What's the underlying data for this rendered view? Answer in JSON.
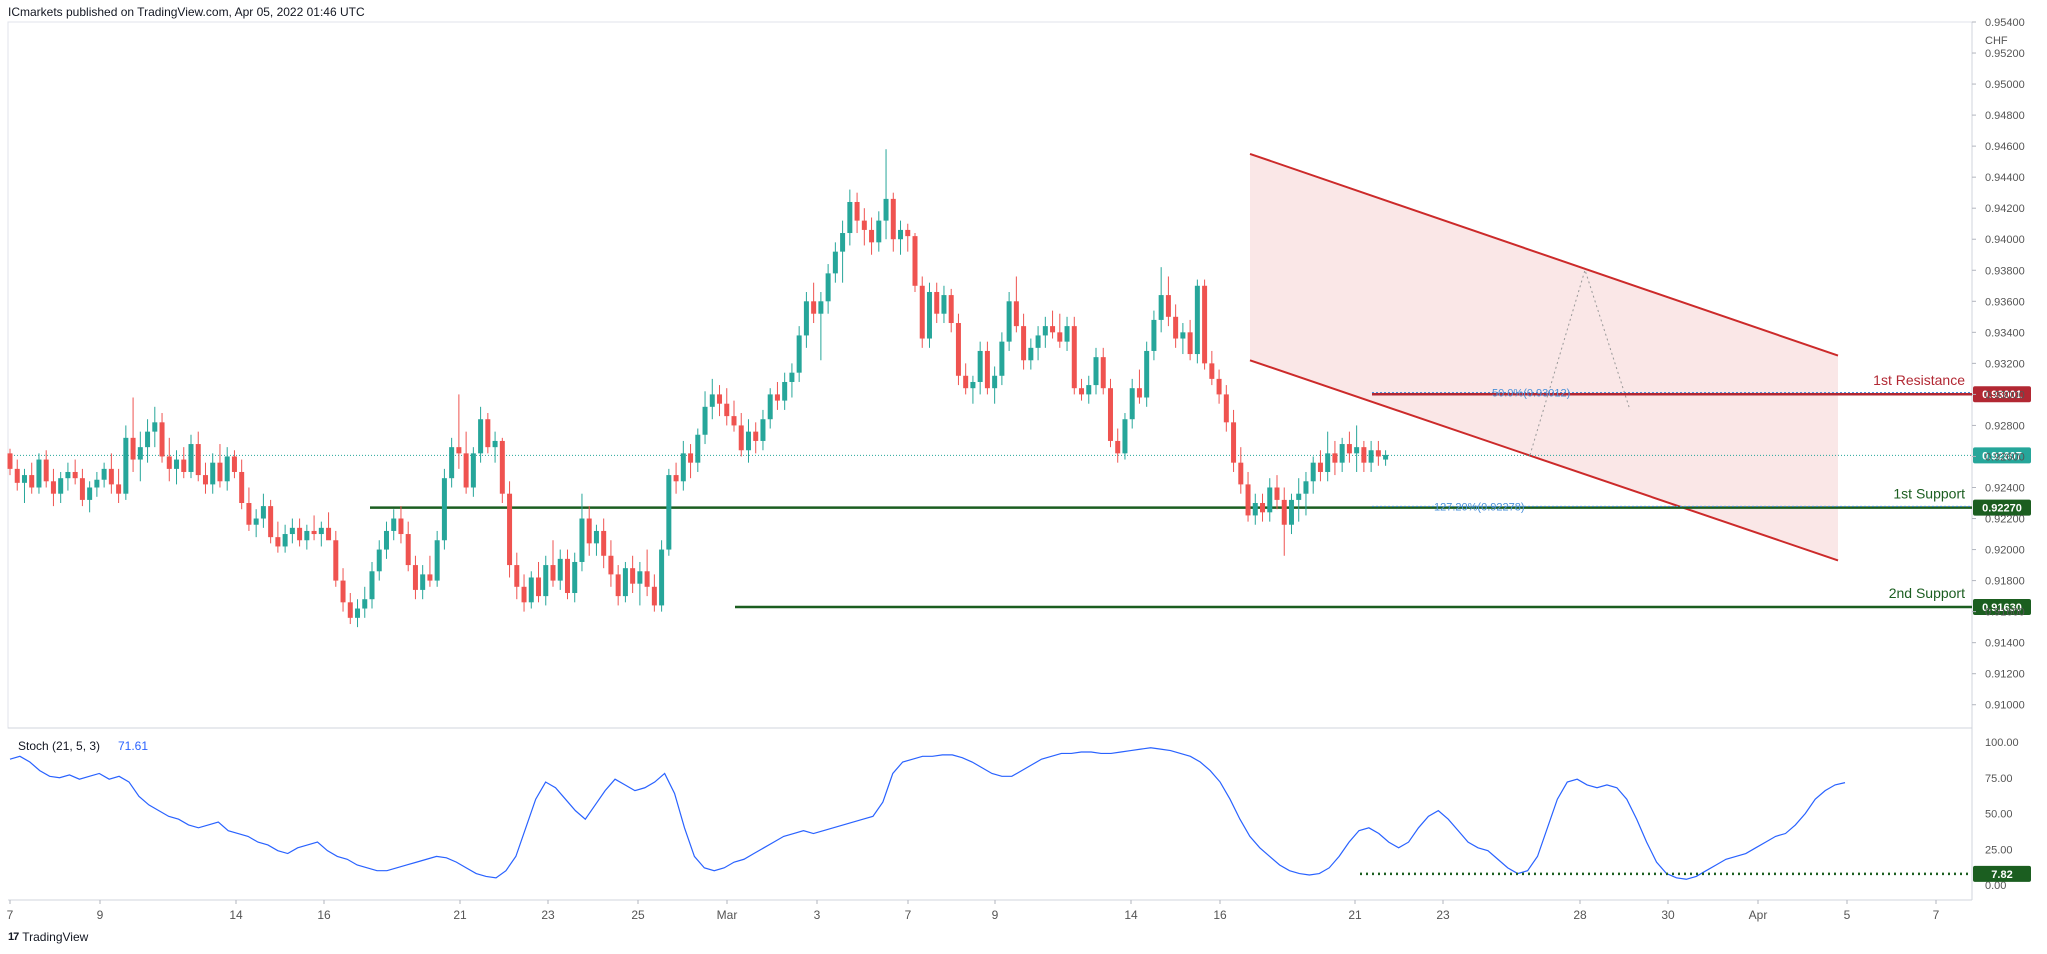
{
  "header": {
    "publish_line": "ICmarkets published on TradingView.com, Apr 05, 2022 01:46 UTC"
  },
  "footer": {
    "brand": "TradingView"
  },
  "colors": {
    "up": "#26a69a",
    "down": "#ef5350",
    "resistance": "#b22833",
    "support": "#1b5e20",
    "channel": "#cc2a2a",
    "stoch": "#2962ff"
  },
  "chart_data": {
    "type": "candlestick",
    "currency_label": "CHF",
    "y_ticks": [
      "0.95400",
      "0.95200",
      "0.95000",
      "0.94800",
      "0.94600",
      "0.94400",
      "0.94200",
      "0.94000",
      "0.93800",
      "0.93600",
      "0.93400",
      "0.93200",
      "0.93000",
      "0.92800",
      "0.92600",
      "0.92400",
      "0.92200",
      "0.92000",
      "0.91800",
      "0.91600",
      "0.91400",
      "0.91200",
      "0.91000"
    ],
    "ylim": [
      0.9085,
      0.954
    ],
    "x_ticks": [
      "7",
      "9",
      "14",
      "16",
      "21",
      "23",
      "25",
      "Mar",
      "3",
      "7",
      "9",
      "14",
      "16",
      "21",
      "23",
      "28",
      "30",
      "Apr",
      "5",
      "7"
    ],
    "current_price": "0.92607",
    "levels": [
      {
        "name": "1st Resistance",
        "price": 0.93001,
        "label": "0.93001",
        "start": "Mar 21"
      },
      {
        "name": "1st Support",
        "price": 0.9227,
        "label": "0.92270",
        "start": "Feb 17"
      },
      {
        "name": "2nd Support",
        "price": 0.9163,
        "label": "0.91630",
        "start": "Mar 1"
      }
    ],
    "fib_labels": [
      {
        "text": "50.0%(0.93012)",
        "price": 0.93012
      },
      {
        "text": "127.20%(0.92278)",
        "price": 0.92278
      }
    ],
    "channel": {
      "upper": [
        [
          0,
          0.9455
        ],
        [
          1,
          0.9325
        ]
      ],
      "lower": [
        [
          0,
          0.9322
        ],
        [
          1,
          0.9193
        ]
      ],
      "start": "Mar 16",
      "end": "Apr 5"
    },
    "ohlc": [
      [
        0.9262,
        0.9265,
        0.9248,
        0.9252
      ],
      [
        0.9252,
        0.9258,
        0.9238,
        0.9243
      ],
      [
        0.9243,
        0.9252,
        0.923,
        0.9248
      ],
      [
        0.9248,
        0.9256,
        0.9236,
        0.924
      ],
      [
        0.924,
        0.9262,
        0.9236,
        0.9258
      ],
      [
        0.9258,
        0.9264,
        0.924,
        0.9244
      ],
      [
        0.9244,
        0.9252,
        0.9228,
        0.9236
      ],
      [
        0.9236,
        0.925,
        0.923,
        0.9246
      ],
      [
        0.9246,
        0.9256,
        0.9238,
        0.925
      ],
      [
        0.925,
        0.9258,
        0.9242,
        0.9246
      ],
      [
        0.9246,
        0.9252,
        0.9228,
        0.9232
      ],
      [
        0.9232,
        0.9244,
        0.9224,
        0.924
      ],
      [
        0.924,
        0.925,
        0.9234,
        0.9245
      ],
      [
        0.9245,
        0.9256,
        0.924,
        0.9252
      ],
      [
        0.9252,
        0.9262,
        0.9236,
        0.9242
      ],
      [
        0.9242,
        0.9252,
        0.923,
        0.9236
      ],
      [
        0.9236,
        0.928,
        0.9232,
        0.9272
      ],
      [
        0.9272,
        0.9298,
        0.925,
        0.9258
      ],
      [
        0.9258,
        0.9276,
        0.9244,
        0.9266
      ],
      [
        0.9266,
        0.9284,
        0.9256,
        0.9276
      ],
      [
        0.9276,
        0.9292,
        0.9266,
        0.9282
      ],
      [
        0.9282,
        0.9288,
        0.9256,
        0.926
      ],
      [
        0.926,
        0.9272,
        0.9244,
        0.9252
      ],
      [
        0.9252,
        0.9264,
        0.9242,
        0.9258
      ],
      [
        0.9258,
        0.9266,
        0.9246,
        0.925
      ],
      [
        0.925,
        0.9274,
        0.9246,
        0.9268
      ],
      [
        0.9268,
        0.9276,
        0.9244,
        0.9248
      ],
      [
        0.9248,
        0.9256,
        0.9236,
        0.9242
      ],
      [
        0.9242,
        0.9262,
        0.9236,
        0.9256
      ],
      [
        0.9256,
        0.9268,
        0.924,
        0.9244
      ],
      [
        0.9244,
        0.9266,
        0.9238,
        0.926
      ],
      [
        0.926,
        0.9264,
        0.9246,
        0.925
      ],
      [
        0.925,
        0.9258,
        0.9226,
        0.923
      ],
      [
        0.923,
        0.924,
        0.9212,
        0.9216
      ],
      [
        0.9216,
        0.9226,
        0.9208,
        0.922
      ],
      [
        0.922,
        0.9236,
        0.9214,
        0.9228
      ],
      [
        0.9228,
        0.9232,
        0.9204,
        0.9208
      ],
      [
        0.9208,
        0.9218,
        0.9198,
        0.9202
      ],
      [
        0.9202,
        0.9216,
        0.9198,
        0.921
      ],
      [
        0.921,
        0.922,
        0.9204,
        0.9214
      ],
      [
        0.9214,
        0.922,
        0.9202,
        0.9206
      ],
      [
        0.9206,
        0.9216,
        0.92,
        0.9212
      ],
      [
        0.9212,
        0.9222,
        0.9206,
        0.921
      ],
      [
        0.921,
        0.9218,
        0.9202,
        0.9214
      ],
      [
        0.9214,
        0.9224,
        0.9208,
        0.9206
      ],
      [
        0.9206,
        0.9212,
        0.9176,
        0.918
      ],
      [
        0.918,
        0.9188,
        0.916,
        0.9166
      ],
      [
        0.9166,
        0.9172,
        0.9152,
        0.9156
      ],
      [
        0.9156,
        0.9168,
        0.915,
        0.9162
      ],
      [
        0.9162,
        0.9176,
        0.9156,
        0.9168
      ],
      [
        0.9168,
        0.9192,
        0.9162,
        0.9186
      ],
      [
        0.9186,
        0.9206,
        0.918,
        0.92
      ],
      [
        0.92,
        0.9218,
        0.9194,
        0.9212
      ],
      [
        0.9212,
        0.9226,
        0.9206,
        0.922
      ],
      [
        0.922,
        0.9228,
        0.9204,
        0.921
      ],
      [
        0.921,
        0.9218,
        0.9186,
        0.919
      ],
      [
        0.919,
        0.9196,
        0.9168,
        0.9174
      ],
      [
        0.9174,
        0.919,
        0.9168,
        0.9184
      ],
      [
        0.9184,
        0.9196,
        0.9176,
        0.918
      ],
      [
        0.918,
        0.9212,
        0.9176,
        0.9206
      ],
      [
        0.9206,
        0.9252,
        0.92,
        0.9246
      ],
      [
        0.9246,
        0.9272,
        0.924,
        0.9266
      ],
      [
        0.9266,
        0.93,
        0.9252,
        0.9262
      ],
      [
        0.9262,
        0.9276,
        0.9236,
        0.924
      ],
      [
        0.924,
        0.9266,
        0.9234,
        0.9262
      ],
      [
        0.9262,
        0.9292,
        0.9256,
        0.9284
      ],
      [
        0.9284,
        0.9288,
        0.9262,
        0.9266
      ],
      [
        0.9266,
        0.9276,
        0.9256,
        0.927
      ],
      [
        0.927,
        0.9272,
        0.923,
        0.9236
      ],
      [
        0.9236,
        0.9244,
        0.9182,
        0.919
      ],
      [
        0.919,
        0.9198,
        0.9168,
        0.9176
      ],
      [
        0.9176,
        0.9184,
        0.916,
        0.9166
      ],
      [
        0.9166,
        0.9186,
        0.9162,
        0.9182
      ],
      [
        0.9182,
        0.9192,
        0.9166,
        0.917
      ],
      [
        0.917,
        0.9196,
        0.9164,
        0.919
      ],
      [
        0.919,
        0.9206,
        0.9176,
        0.918
      ],
      [
        0.918,
        0.92,
        0.9174,
        0.9194
      ],
      [
        0.9194,
        0.92,
        0.9168,
        0.9172
      ],
      [
        0.9172,
        0.9198,
        0.9166,
        0.9192
      ],
      [
        0.9192,
        0.9236,
        0.9186,
        0.922
      ],
      [
        0.922,
        0.9228,
        0.9196,
        0.9204
      ],
      [
        0.9204,
        0.9216,
        0.9196,
        0.9212
      ],
      [
        0.9212,
        0.922,
        0.9188,
        0.9196
      ],
      [
        0.9196,
        0.9206,
        0.9176,
        0.9184
      ],
      [
        0.9184,
        0.919,
        0.9164,
        0.917
      ],
      [
        0.917,
        0.9192,
        0.9166,
        0.9188
      ],
      [
        0.9188,
        0.9196,
        0.9172,
        0.9178
      ],
      [
        0.9178,
        0.9192,
        0.9164,
        0.9186
      ],
      [
        0.9186,
        0.92,
        0.917,
        0.9176
      ],
      [
        0.9176,
        0.9184,
        0.916,
        0.9164
      ],
      [
        0.9164,
        0.9206,
        0.916,
        0.92
      ],
      [
        0.92,
        0.9252,
        0.9196,
        0.9248
      ],
      [
        0.9248,
        0.9256,
        0.9236,
        0.9244
      ],
      [
        0.9244,
        0.927,
        0.9238,
        0.9262
      ],
      [
        0.9262,
        0.9268,
        0.9246,
        0.9256
      ],
      [
        0.9256,
        0.9278,
        0.925,
        0.9274
      ],
      [
        0.9274,
        0.9302,
        0.9268,
        0.9292
      ],
      [
        0.9292,
        0.931,
        0.9284,
        0.93
      ],
      [
        0.93,
        0.9306,
        0.9286,
        0.9294
      ],
      [
        0.9294,
        0.9304,
        0.928,
        0.9286
      ],
      [
        0.9286,
        0.9296,
        0.9276,
        0.928
      ],
      [
        0.928,
        0.9288,
        0.926,
        0.9264
      ],
      [
        0.9264,
        0.9284,
        0.9256,
        0.9276
      ],
      [
        0.9276,
        0.9282,
        0.9262,
        0.927
      ],
      [
        0.927,
        0.929,
        0.9264,
        0.9284
      ],
      [
        0.9284,
        0.9304,
        0.9278,
        0.93
      ],
      [
        0.93,
        0.9308,
        0.929,
        0.9296
      ],
      [
        0.9296,
        0.9314,
        0.929,
        0.9308
      ],
      [
        0.9308,
        0.932,
        0.9298,
        0.9314
      ],
      [
        0.9314,
        0.9344,
        0.9308,
        0.9338
      ],
      [
        0.9338,
        0.9366,
        0.933,
        0.936
      ],
      [
        0.936,
        0.9372,
        0.9346,
        0.9352
      ],
      [
        0.9352,
        0.9366,
        0.9322,
        0.936
      ],
      [
        0.936,
        0.9384,
        0.9352,
        0.9378
      ],
      [
        0.9378,
        0.9398,
        0.9372,
        0.9392
      ],
      [
        0.9392,
        0.9412,
        0.9372,
        0.9404
      ],
      [
        0.9404,
        0.9432,
        0.9396,
        0.9424
      ],
      [
        0.9424,
        0.943,
        0.9404,
        0.9412
      ],
      [
        0.9412,
        0.942,
        0.9396,
        0.9406
      ],
      [
        0.9406,
        0.9414,
        0.939,
        0.9398
      ],
      [
        0.9398,
        0.9418,
        0.9392,
        0.9412
      ],
      [
        0.9412,
        0.9458,
        0.94,
        0.9426
      ],
      [
        0.9426,
        0.943,
        0.9392,
        0.94
      ],
      [
        0.94,
        0.9412,
        0.939,
        0.9406
      ],
      [
        0.9406,
        0.941,
        0.9392,
        0.9402
      ],
      [
        0.9402,
        0.9404,
        0.9366,
        0.937
      ],
      [
        0.937,
        0.9376,
        0.933,
        0.9336
      ],
      [
        0.9336,
        0.9372,
        0.933,
        0.9366
      ],
      [
        0.9366,
        0.9372,
        0.9346,
        0.9352
      ],
      [
        0.9352,
        0.937,
        0.9346,
        0.9364
      ],
      [
        0.9364,
        0.9368,
        0.934,
        0.9346
      ],
      [
        0.9346,
        0.9352,
        0.9306,
        0.9312
      ],
      [
        0.9312,
        0.932,
        0.93,
        0.9304
      ],
      [
        0.9304,
        0.9312,
        0.9294,
        0.9308
      ],
      [
        0.9308,
        0.9334,
        0.93,
        0.9328
      ],
      [
        0.9328,
        0.9334,
        0.93,
        0.9304
      ],
      [
        0.9304,
        0.9318,
        0.9294,
        0.9312
      ],
      [
        0.9312,
        0.934,
        0.9306,
        0.9334
      ],
      [
        0.9334,
        0.9366,
        0.9328,
        0.936
      ],
      [
        0.936,
        0.9376,
        0.934,
        0.9344
      ],
      [
        0.9344,
        0.9352,
        0.9316,
        0.9322
      ],
      [
        0.9322,
        0.9336,
        0.9316,
        0.933
      ],
      [
        0.933,
        0.9344,
        0.9322,
        0.9338
      ],
      [
        0.9338,
        0.935,
        0.933,
        0.9344
      ],
      [
        0.9344,
        0.9354,
        0.9336,
        0.934
      ],
      [
        0.934,
        0.9352,
        0.933,
        0.9334
      ],
      [
        0.9334,
        0.935,
        0.9328,
        0.9344
      ],
      [
        0.9344,
        0.935,
        0.93,
        0.9304
      ],
      [
        0.9304,
        0.931,
        0.9296,
        0.93
      ],
      [
        0.93,
        0.9312,
        0.9294,
        0.9306
      ],
      [
        0.9306,
        0.933,
        0.93,
        0.9324
      ],
      [
        0.9324,
        0.933,
        0.93,
        0.9304
      ],
      [
        0.9304,
        0.931,
        0.9266,
        0.927
      ],
      [
        0.927,
        0.9278,
        0.9256,
        0.9262
      ],
      [
        0.9262,
        0.9288,
        0.9258,
        0.9284
      ],
      [
        0.9284,
        0.931,
        0.9278,
        0.9304
      ],
      [
        0.9304,
        0.9316,
        0.9294,
        0.9298
      ],
      [
        0.9298,
        0.9334,
        0.9292,
        0.9328
      ],
      [
        0.9328,
        0.9354,
        0.9322,
        0.9348
      ],
      [
        0.9348,
        0.9382,
        0.934,
        0.9364
      ],
      [
        0.9364,
        0.9376,
        0.9344,
        0.935
      ],
      [
        0.935,
        0.9358,
        0.933,
        0.9336
      ],
      [
        0.9336,
        0.9346,
        0.9326,
        0.934
      ],
      [
        0.934,
        0.9348,
        0.9322,
        0.9326
      ],
      [
        0.9326,
        0.9374,
        0.932,
        0.937
      ],
      [
        0.937,
        0.9374,
        0.9316,
        0.932
      ],
      [
        0.932,
        0.9328,
        0.9306,
        0.931
      ],
      [
        0.931,
        0.9316,
        0.9294,
        0.93
      ],
      [
        0.93,
        0.9306,
        0.9276,
        0.9282
      ],
      [
        0.9282,
        0.929,
        0.925,
        0.9256
      ],
      [
        0.9256,
        0.9266,
        0.9236,
        0.9242
      ],
      [
        0.9242,
        0.925,
        0.9218,
        0.9222
      ],
      [
        0.9222,
        0.9236,
        0.9216,
        0.923
      ],
      [
        0.923,
        0.9236,
        0.9218,
        0.9224
      ],
      [
        0.9224,
        0.9246,
        0.9218,
        0.924
      ],
      [
        0.924,
        0.9248,
        0.9226,
        0.9232
      ],
      [
        0.9232,
        0.924,
        0.9196,
        0.9216
      ],
      [
        0.9216,
        0.9236,
        0.921,
        0.9232
      ],
      [
        0.9232,
        0.9246,
        0.9218,
        0.9236
      ],
      [
        0.9236,
        0.925,
        0.9222,
        0.9244
      ],
      [
        0.9244,
        0.926,
        0.9236,
        0.9256
      ],
      [
        0.9256,
        0.9264,
        0.9244,
        0.925
      ],
      [
        0.925,
        0.9276,
        0.9244,
        0.9262
      ],
      [
        0.9262,
        0.927,
        0.9248,
        0.9256
      ],
      [
        0.9256,
        0.9272,
        0.925,
        0.9268
      ],
      [
        0.9268,
        0.9276,
        0.9256,
        0.9262
      ],
      [
        0.9262,
        0.928,
        0.925,
        0.9266
      ],
      [
        0.9266,
        0.927,
        0.925,
        0.9256
      ],
      [
        0.9256,
        0.927,
        0.925,
        0.9264
      ],
      [
        0.9264,
        0.927,
        0.9254,
        0.926
      ],
      [
        0.9258,
        0.9264,
        0.9254,
        0.9261
      ]
    ],
    "stochastic": {
      "label": "Stoch (21, 5, 3)",
      "value": "71.61",
      "y_ticks": [
        "100.00",
        "75.00",
        "50.00",
        "25.00",
        "0.00"
      ],
      "ylim": [
        0,
        100
      ],
      "marker_value": "7.82",
      "k": [
        88,
        90,
        86,
        80,
        76,
        75,
        77,
        74,
        76,
        78,
        74,
        76,
        72,
        62,
        56,
        52,
        48,
        46,
        42,
        40,
        42,
        44,
        38,
        36,
        34,
        30,
        28,
        24,
        22,
        26,
        28,
        30,
        24,
        20,
        18,
        14,
        12,
        10,
        10,
        12,
        14,
        16,
        18,
        20,
        19,
        16,
        12,
        8,
        6,
        5,
        10,
        20,
        40,
        60,
        72,
        68,
        60,
        52,
        46,
        56,
        66,
        74,
        70,
        66,
        68,
        72,
        78,
        64,
        40,
        20,
        12,
        10,
        12,
        16,
        18,
        22,
        26,
        30,
        34,
        36,
        38,
        36,
        38,
        40,
        42,
        44,
        46,
        48,
        58,
        78,
        86,
        88,
        90,
        90,
        91,
        91,
        89,
        86,
        82,
        78,
        76,
        76,
        80,
        84,
        88,
        90,
        92,
        92,
        93,
        93,
        92,
        92,
        93,
        94,
        95,
        96,
        95,
        94,
        92,
        90,
        86,
        80,
        72,
        60,
        46,
        34,
        26,
        20,
        14,
        10,
        8,
        7,
        8,
        12,
        20,
        30,
        38,
        40,
        36,
        30,
        26,
        30,
        40,
        48,
        52,
        46,
        38,
        30,
        26,
        24,
        18,
        12,
        8,
        10,
        20,
        40,
        60,
        72,
        74,
        70,
        68,
        70,
        68,
        60,
        46,
        30,
        16,
        8,
        5,
        4,
        6,
        10,
        14,
        18,
        20,
        22,
        26,
        30,
        34,
        36,
        42,
        50,
        60,
        66,
        70,
        71.6
      ]
    }
  }
}
